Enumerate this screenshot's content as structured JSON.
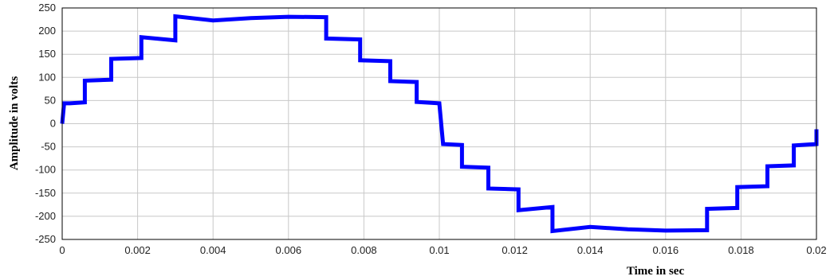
{
  "chart_data": {
    "type": "line",
    "title": "",
    "xlabel": "Time in sec",
    "ylabel": "Amplitude in volts",
    "xlim": [
      0,
      0.02
    ],
    "ylim": [
      -250,
      250
    ],
    "grid": true,
    "x_ticks": [
      "0",
      "0.002",
      "0.004",
      "0.006",
      "0.008",
      "0.01",
      "0.012",
      "0.014",
      "0.016",
      "0.018",
      "0.02"
    ],
    "y_ticks": [
      "250",
      "200",
      "150",
      "100",
      "50",
      "0",
      "-50",
      "-100",
      "-150",
      "-200",
      "-250"
    ],
    "series": [
      {
        "color": "#0000ff",
        "x": [
          0,
          5e-05,
          0.0002,
          0.0006,
          0.0006,
          0.0013,
          0.0013,
          0.0021,
          0.0021,
          0.003,
          0.003,
          0.004,
          0.005,
          0.006,
          0.007,
          0.007,
          0.0079,
          0.0079,
          0.0087,
          0.0087,
          0.0094,
          0.0094,
          0.01,
          0.0101,
          0.0106,
          0.0106,
          0.0113,
          0.0113,
          0.0121,
          0.0121,
          0.013,
          0.013,
          0.014,
          0.015,
          0.016,
          0.0171,
          0.0171,
          0.0179,
          0.0179,
          0.0187,
          0.0187,
          0.0194,
          0.0194,
          0.02,
          0.02
        ],
        "y": [
          0,
          44,
          44,
          46,
          93,
          95,
          140,
          142,
          187,
          180,
          232,
          223,
          228,
          231,
          230,
          184,
          182,
          137,
          135,
          92,
          90,
          47,
          44,
          -44,
          -46,
          -93,
          -95,
          -140,
          -142,
          -187,
          -180,
          -232,
          -223,
          -228,
          -231,
          -230,
          -184,
          -182,
          -137,
          -135,
          -92,
          -90,
          -47,
          -44,
          -12
        ]
      }
    ]
  }
}
